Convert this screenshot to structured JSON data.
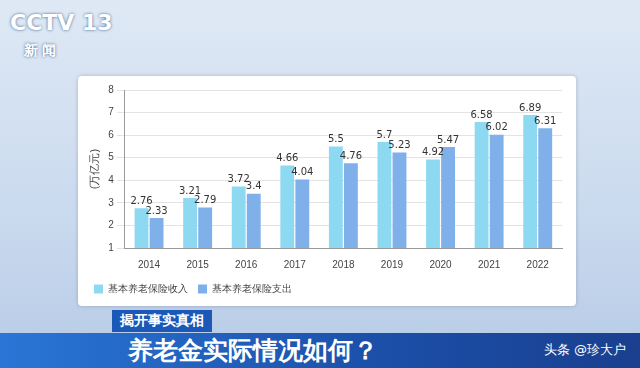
{
  "chart_data": {
    "type": "bar",
    "title": "养老金实际情况如何？",
    "subtitle": "揭开事实真相",
    "annotations": [
      "CCTV 13",
      "新闻",
      "头条 @珍大户"
    ],
    "y_label": "(万亿元)",
    "categories": [
      "2014",
      "2015",
      "2016",
      "2017",
      "2018",
      "2019",
      "2020",
      "2021",
      "2022"
    ],
    "series": [
      {
        "name": "基本养老保险收入",
        "color": "#8dd9f2",
        "values": [
          2.76,
          3.21,
          3.72,
          4.66,
          5.5,
          5.7,
          4.92,
          6.58,
          6.89
        ]
      },
      {
        "name": "基本养老保险支出",
        "color": "#7fb0ea",
        "values": [
          2.33,
          2.79,
          3.4,
          4.04,
          4.76,
          5.23,
          5.47,
          6.02,
          6.31
        ]
      }
    ],
    "ylim": [
      1,
      8
    ],
    "yticks": [
      1,
      2,
      3,
      4,
      5,
      6,
      7,
      8
    ],
    "grid": true,
    "legend": "bottom-left",
    "data_labels": true
  }
}
